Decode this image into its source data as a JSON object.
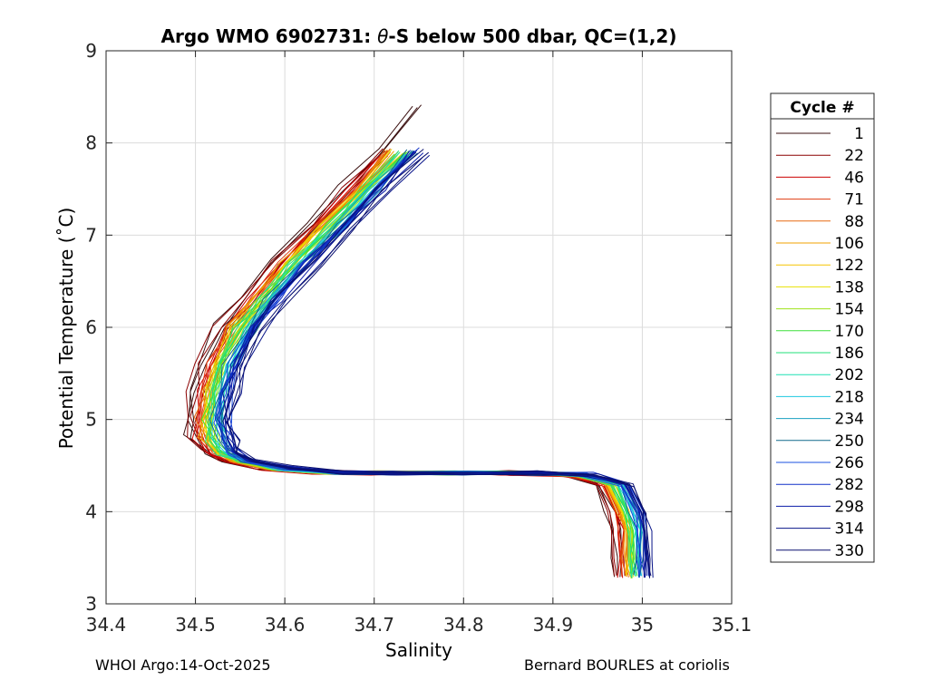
{
  "chart_data": {
    "type": "line",
    "title": "Argo WMO 6902731: θ-S below 500 dbar,  QC=(1,2)",
    "title_prefix": "Argo WMO 6902731: ",
    "title_theta": "θ",
    "title_suffix": "-S below 500 dbar,  QC=(1,2)",
    "xlabel": "Salinity",
    "ylabel": "Potential Temperature (˚C)",
    "xlim": [
      34.4,
      35.1
    ],
    "ylim": [
      3,
      9
    ],
    "xticks": [
      "34.4",
      "34.5",
      "34.6",
      "34.7",
      "34.8",
      "34.9",
      "35",
      "35.1"
    ],
    "yticks": [
      "3",
      "4",
      "5",
      "6",
      "7",
      "8",
      "9"
    ],
    "grid": true,
    "legend_title": "Cycle #",
    "legend_position": "outside-right",
    "series": [
      {
        "name": "1",
        "color": "#3a0f0f"
      },
      {
        "name": "22",
        "color": "#8b0000"
      },
      {
        "name": "46",
        "color": "#cc0000"
      },
      {
        "name": "71",
        "color": "#e03c10"
      },
      {
        "name": "88",
        "color": "#e86a10"
      },
      {
        "name": "106",
        "color": "#f0a000"
      },
      {
        "name": "122",
        "color": "#f5c400"
      },
      {
        "name": "138",
        "color": "#e8e000"
      },
      {
        "name": "154",
        "color": "#9ee21a"
      },
      {
        "name": "170",
        "color": "#3fe03a"
      },
      {
        "name": "186",
        "color": "#22e07a"
      },
      {
        "name": "202",
        "color": "#1ee0b4"
      },
      {
        "name": "218",
        "color": "#1ec8e0"
      },
      {
        "name": "234",
        "color": "#1aa0c0"
      },
      {
        "name": "250",
        "color": "#106a8c"
      },
      {
        "name": "266",
        "color": "#1a50e0"
      },
      {
        "name": "282",
        "color": "#1030c8"
      },
      {
        "name": "298",
        "color": "#0b1ca8"
      },
      {
        "name": "314",
        "color": "#081488"
      },
      {
        "name": "330",
        "color": "#0a1070"
      }
    ],
    "base_profile": {
      "salinity": [
        34.764,
        34.72,
        34.68,
        34.64,
        34.6,
        34.565,
        34.54,
        34.52,
        34.51,
        34.505,
        34.51,
        34.52,
        34.54,
        34.58,
        34.64,
        34.7,
        34.78,
        34.86,
        34.92,
        34.96,
        34.975,
        34.98,
        34.98,
        34.98
      ],
      "temperature": [
        8.4,
        7.9,
        7.5,
        7.1,
        6.7,
        6.3,
        6.0,
        5.6,
        5.3,
        5.0,
        4.8,
        4.65,
        4.55,
        4.47,
        4.43,
        4.42,
        4.42,
        4.42,
        4.4,
        4.3,
        4.0,
        3.8,
        3.5,
        3.3
      ]
    }
  },
  "footer": {
    "left": "WHOI Argo:14-Oct-2025",
    "right": "Bernard BOURLES at coriolis"
  }
}
